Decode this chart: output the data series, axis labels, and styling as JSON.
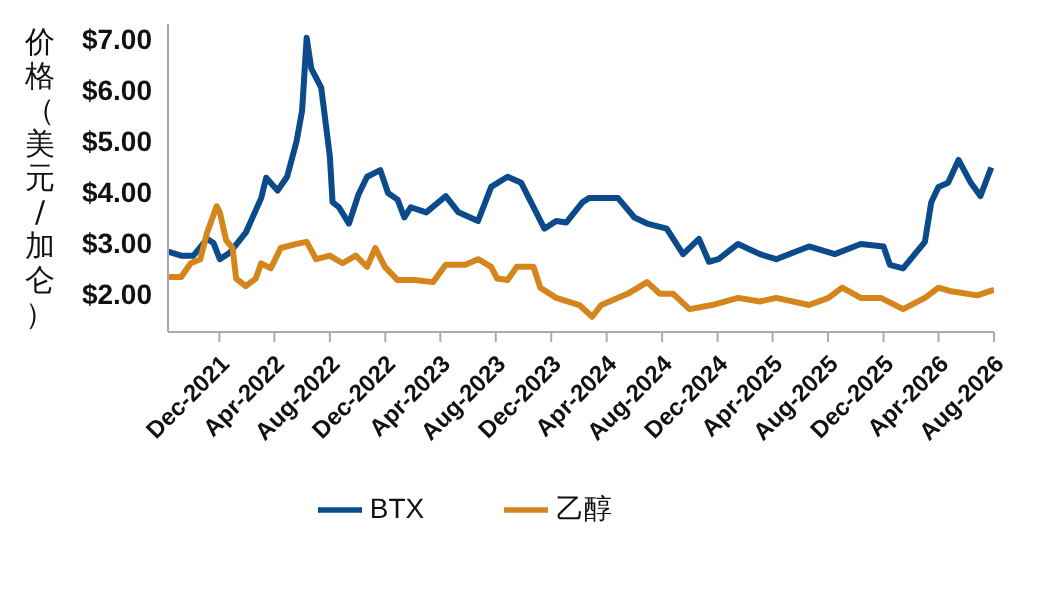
{
  "chart_data": {
    "type": "line",
    "ylabel": "价格（美元/加仑）",
    "xlim": [
      "2021-08-10",
      "2026-08-01"
    ],
    "ylim": [
      1.25,
      7.3
    ],
    "yticks": [
      {
        "value": 2,
        "label": "$2.00"
      },
      {
        "value": 3,
        "label": "$3.00"
      },
      {
        "value": 4,
        "label": "$4.00"
      },
      {
        "value": 5,
        "label": "$5.00"
      },
      {
        "value": 6,
        "label": "$6.00"
      },
      {
        "value": 7,
        "label": "$7.00"
      }
    ],
    "xticks": [
      {
        "value": "2021-12-01",
        "label": "Dec-2021"
      },
      {
        "value": "2022-04-01",
        "label": "Apr-2022"
      },
      {
        "value": "2022-08-01",
        "label": "Aug-2022"
      },
      {
        "value": "2022-12-01",
        "label": "Dec-2022"
      },
      {
        "value": "2023-04-01",
        "label": "Apr-2023"
      },
      {
        "value": "2023-08-01",
        "label": "Aug-2023"
      },
      {
        "value": "2023-12-01",
        "label": "Dec-2023"
      },
      {
        "value": "2024-04-01",
        "label": "Apr-2024"
      },
      {
        "value": "2024-08-01",
        "label": "Aug-2024"
      },
      {
        "value": "2024-12-01",
        "label": "Dec-2024"
      },
      {
        "value": "2025-04-01",
        "label": "Apr-2025"
      },
      {
        "value": "2025-08-01",
        "label": "Aug-2025"
      },
      {
        "value": "2025-12-01",
        "label": "Dec-2025"
      },
      {
        "value": "2026-04-01",
        "label": "Apr-2026"
      },
      {
        "value": "2026-08-01",
        "label": "Aug-2026"
      }
    ],
    "grid": false,
    "legend": "bottom",
    "marker": "none",
    "line_style": "solid",
    "series": [
      {
        "name": "BTX",
        "color": "#0b4a8b",
        "x": [
          "2021-08-10",
          "2021-09-08",
          "2021-10-05",
          "2021-11-04",
          "2021-11-18",
          "2021-12-02",
          "2021-12-23",
          "2022-01-28",
          "2022-03-03",
          "2022-03-14",
          "2022-04-08",
          "2022-04-29",
          "2022-05-20",
          "2022-06-01",
          "2022-06-11",
          "2022-06-21",
          "2022-07-13",
          "2022-08-01",
          "2022-08-07",
          "2022-08-21",
          "2022-09-12",
          "2022-10-03",
          "2022-10-22",
          "2022-11-20",
          "2022-12-07",
          "2022-12-28",
          "2023-01-12",
          "2023-01-26",
          "2023-03-01",
          "2023-04-13",
          "2023-05-11",
          "2023-06-23",
          "2023-07-22",
          "2023-08-27",
          "2023-09-26",
          "2023-10-30",
          "2023-11-16",
          "2023-12-12",
          "2024-01-03",
          "2024-02-08",
          "2024-02-22",
          "2024-04-26",
          "2024-06-01",
          "2024-06-29",
          "2024-08-11",
          "2024-09-16",
          "2024-10-21",
          "2024-11-12",
          "2024-12-03",
          "2025-01-15",
          "2025-03-04",
          "2025-04-09",
          "2025-06-20",
          "2025-08-16",
          "2025-10-12",
          "2025-12-01",
          "2025-12-15",
          "2026-01-13",
          "2026-03-02",
          "2026-03-16",
          "2026-04-01",
          "2026-04-22",
          "2026-05-15",
          "2026-06-11",
          "2026-07-02",
          "2026-07-26"
        ],
        "values": [
          2.83,
          2.75,
          2.75,
          3.08,
          3.0,
          2.68,
          2.8,
          3.2,
          3.88,
          4.28,
          4.03,
          4.3,
          5.0,
          5.6,
          7.03,
          6.43,
          6.05,
          4.7,
          3.8,
          3.7,
          3.38,
          3.95,
          4.3,
          4.43,
          3.98,
          3.85,
          3.5,
          3.7,
          3.6,
          3.92,
          3.6,
          3.43,
          4.1,
          4.3,
          4.18,
          3.58,
          3.28,
          3.43,
          3.4,
          3.8,
          3.88,
          3.88,
          3.5,
          3.38,
          3.28,
          2.78,
          3.08,
          2.63,
          2.68,
          2.98,
          2.78,
          2.68,
          2.93,
          2.78,
          2.98,
          2.93,
          2.57,
          2.5,
          3.02,
          3.8,
          4.1,
          4.18,
          4.63,
          4.18,
          3.92,
          4.48
        ]
      },
      {
        "name": "乙醇",
        "color": "#d4861c",
        "x": [
          "2021-08-10",
          "2021-09-08",
          "2021-09-29",
          "2021-10-20",
          "2021-11-04",
          "2021-11-25",
          "2021-12-02",
          "2021-12-16",
          "2021-12-30",
          "2022-01-07",
          "2022-01-28",
          "2022-02-19",
          "2022-03-03",
          "2022-03-24",
          "2022-04-15",
          "2022-05-20",
          "2022-06-11",
          "2022-07-02",
          "2022-08-01",
          "2022-08-29",
          "2022-09-27",
          "2022-10-22",
          "2022-11-09",
          "2022-11-30",
          "2022-12-28",
          "2023-02-03",
          "2023-03-16",
          "2023-04-13",
          "2023-05-26",
          "2023-06-23",
          "2023-07-22",
          "2023-08-04",
          "2023-08-27",
          "2023-09-16",
          "2023-10-23",
          "2023-11-07",
          "2023-12-12",
          "2024-02-01",
          "2024-02-29",
          "2024-03-20",
          "2024-05-17",
          "2024-06-29",
          "2024-07-27",
          "2024-08-25",
          "2024-09-30",
          "2024-11-19",
          "2025-01-15",
          "2025-03-04",
          "2025-04-09",
          "2025-06-20",
          "2025-08-02",
          "2025-09-01",
          "2025-10-12",
          "2025-11-25",
          "2026-01-13",
          "2026-03-02",
          "2026-04-01",
          "2026-04-29",
          "2026-06-25",
          "2026-08-01"
        ],
        "values": [
          2.33,
          2.33,
          2.6,
          2.68,
          3.2,
          3.72,
          3.6,
          3.05,
          2.9,
          2.3,
          2.15,
          2.3,
          2.6,
          2.5,
          2.9,
          2.98,
          3.02,
          2.68,
          2.75,
          2.6,
          2.75,
          2.53,
          2.9,
          2.53,
          2.27,
          2.27,
          2.23,
          2.57,
          2.57,
          2.68,
          2.53,
          2.3,
          2.27,
          2.53,
          2.53,
          2.12,
          1.92,
          1.78,
          1.55,
          1.78,
          2.0,
          2.23,
          2.0,
          2.0,
          1.7,
          1.78,
          1.92,
          1.85,
          1.92,
          1.78,
          1.92,
          2.12,
          1.92,
          1.92,
          1.7,
          1.92,
          2.12,
          2.05,
          1.97,
          2.08
        ]
      }
    ]
  }
}
